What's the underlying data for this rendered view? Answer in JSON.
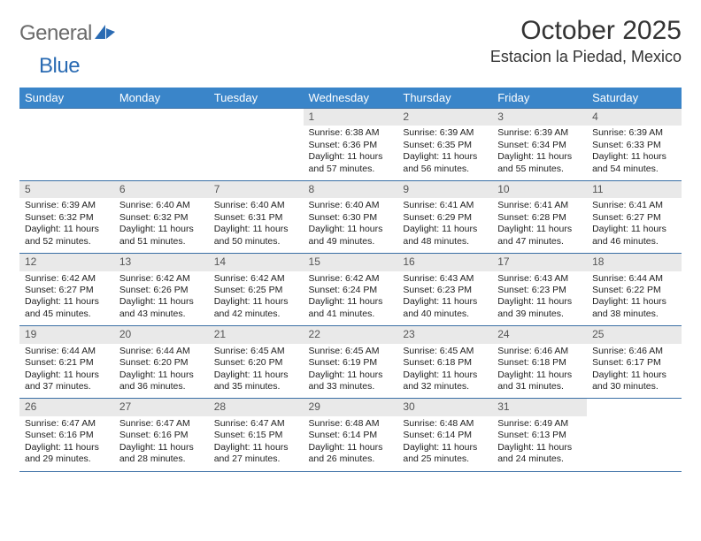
{
  "brand": {
    "part1": "General",
    "part2": "Blue"
  },
  "title": "October 2025",
  "location": "Estacion la Piedad, Mexico",
  "theme": {
    "header_bg": "#3a85c9",
    "header_fg": "#ffffff",
    "daynum_bg": "#e9e9e9",
    "rule_color": "#3a6fa5",
    "text_color": "#222222",
    "logo_gray": "#6b6b6b",
    "logo_blue": "#2a6bb3",
    "title_color": "#333333",
    "page_bg": "#ffffff"
  },
  "layout": {
    "columns": 7,
    "week_rows": 5,
    "cell_font_pt": 10.5
  },
  "weekdays": [
    "Sunday",
    "Monday",
    "Tuesday",
    "Wednesday",
    "Thursday",
    "Friday",
    "Saturday"
  ],
  "weeks": [
    [
      null,
      null,
      null,
      {
        "n": "1",
        "sr": "Sunrise: 6:38 AM",
        "ss": "Sunset: 6:36 PM",
        "dl": "Daylight: 11 hours and 57 minutes."
      },
      {
        "n": "2",
        "sr": "Sunrise: 6:39 AM",
        "ss": "Sunset: 6:35 PM",
        "dl": "Daylight: 11 hours and 56 minutes."
      },
      {
        "n": "3",
        "sr": "Sunrise: 6:39 AM",
        "ss": "Sunset: 6:34 PM",
        "dl": "Daylight: 11 hours and 55 minutes."
      },
      {
        "n": "4",
        "sr": "Sunrise: 6:39 AM",
        "ss": "Sunset: 6:33 PM",
        "dl": "Daylight: 11 hours and 54 minutes."
      }
    ],
    [
      {
        "n": "5",
        "sr": "Sunrise: 6:39 AM",
        "ss": "Sunset: 6:32 PM",
        "dl": "Daylight: 11 hours and 52 minutes."
      },
      {
        "n": "6",
        "sr": "Sunrise: 6:40 AM",
        "ss": "Sunset: 6:32 PM",
        "dl": "Daylight: 11 hours and 51 minutes."
      },
      {
        "n": "7",
        "sr": "Sunrise: 6:40 AM",
        "ss": "Sunset: 6:31 PM",
        "dl": "Daylight: 11 hours and 50 minutes."
      },
      {
        "n": "8",
        "sr": "Sunrise: 6:40 AM",
        "ss": "Sunset: 6:30 PM",
        "dl": "Daylight: 11 hours and 49 minutes."
      },
      {
        "n": "9",
        "sr": "Sunrise: 6:41 AM",
        "ss": "Sunset: 6:29 PM",
        "dl": "Daylight: 11 hours and 48 minutes."
      },
      {
        "n": "10",
        "sr": "Sunrise: 6:41 AM",
        "ss": "Sunset: 6:28 PM",
        "dl": "Daylight: 11 hours and 47 minutes."
      },
      {
        "n": "11",
        "sr": "Sunrise: 6:41 AM",
        "ss": "Sunset: 6:27 PM",
        "dl": "Daylight: 11 hours and 46 minutes."
      }
    ],
    [
      {
        "n": "12",
        "sr": "Sunrise: 6:42 AM",
        "ss": "Sunset: 6:27 PM",
        "dl": "Daylight: 11 hours and 45 minutes."
      },
      {
        "n": "13",
        "sr": "Sunrise: 6:42 AM",
        "ss": "Sunset: 6:26 PM",
        "dl": "Daylight: 11 hours and 43 minutes."
      },
      {
        "n": "14",
        "sr": "Sunrise: 6:42 AM",
        "ss": "Sunset: 6:25 PM",
        "dl": "Daylight: 11 hours and 42 minutes."
      },
      {
        "n": "15",
        "sr": "Sunrise: 6:42 AM",
        "ss": "Sunset: 6:24 PM",
        "dl": "Daylight: 11 hours and 41 minutes."
      },
      {
        "n": "16",
        "sr": "Sunrise: 6:43 AM",
        "ss": "Sunset: 6:23 PM",
        "dl": "Daylight: 11 hours and 40 minutes."
      },
      {
        "n": "17",
        "sr": "Sunrise: 6:43 AM",
        "ss": "Sunset: 6:23 PM",
        "dl": "Daylight: 11 hours and 39 minutes."
      },
      {
        "n": "18",
        "sr": "Sunrise: 6:44 AM",
        "ss": "Sunset: 6:22 PM",
        "dl": "Daylight: 11 hours and 38 minutes."
      }
    ],
    [
      {
        "n": "19",
        "sr": "Sunrise: 6:44 AM",
        "ss": "Sunset: 6:21 PM",
        "dl": "Daylight: 11 hours and 37 minutes."
      },
      {
        "n": "20",
        "sr": "Sunrise: 6:44 AM",
        "ss": "Sunset: 6:20 PM",
        "dl": "Daylight: 11 hours and 36 minutes."
      },
      {
        "n": "21",
        "sr": "Sunrise: 6:45 AM",
        "ss": "Sunset: 6:20 PM",
        "dl": "Daylight: 11 hours and 35 minutes."
      },
      {
        "n": "22",
        "sr": "Sunrise: 6:45 AM",
        "ss": "Sunset: 6:19 PM",
        "dl": "Daylight: 11 hours and 33 minutes."
      },
      {
        "n": "23",
        "sr": "Sunrise: 6:45 AM",
        "ss": "Sunset: 6:18 PM",
        "dl": "Daylight: 11 hours and 32 minutes."
      },
      {
        "n": "24",
        "sr": "Sunrise: 6:46 AM",
        "ss": "Sunset: 6:18 PM",
        "dl": "Daylight: 11 hours and 31 minutes."
      },
      {
        "n": "25",
        "sr": "Sunrise: 6:46 AM",
        "ss": "Sunset: 6:17 PM",
        "dl": "Daylight: 11 hours and 30 minutes."
      }
    ],
    [
      {
        "n": "26",
        "sr": "Sunrise: 6:47 AM",
        "ss": "Sunset: 6:16 PM",
        "dl": "Daylight: 11 hours and 29 minutes."
      },
      {
        "n": "27",
        "sr": "Sunrise: 6:47 AM",
        "ss": "Sunset: 6:16 PM",
        "dl": "Daylight: 11 hours and 28 minutes."
      },
      {
        "n": "28",
        "sr": "Sunrise: 6:47 AM",
        "ss": "Sunset: 6:15 PM",
        "dl": "Daylight: 11 hours and 27 minutes."
      },
      {
        "n": "29",
        "sr": "Sunrise: 6:48 AM",
        "ss": "Sunset: 6:14 PM",
        "dl": "Daylight: 11 hours and 26 minutes."
      },
      {
        "n": "30",
        "sr": "Sunrise: 6:48 AM",
        "ss": "Sunset: 6:14 PM",
        "dl": "Daylight: 11 hours and 25 minutes."
      },
      {
        "n": "31",
        "sr": "Sunrise: 6:49 AM",
        "ss": "Sunset: 6:13 PM",
        "dl": "Daylight: 11 hours and 24 minutes."
      },
      null
    ]
  ]
}
